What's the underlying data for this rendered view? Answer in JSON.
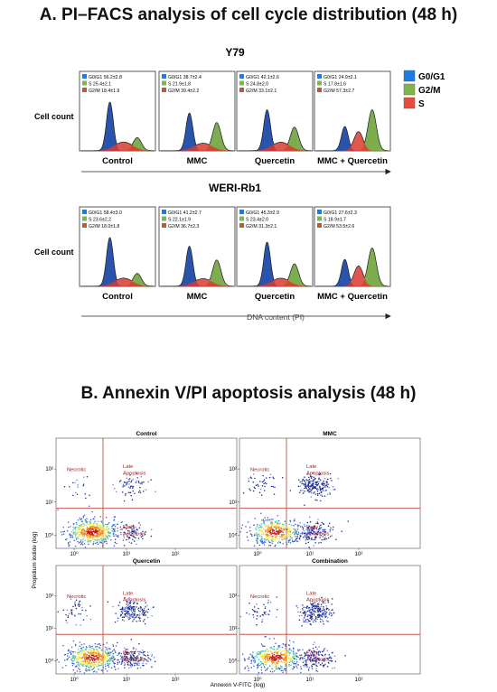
{
  "panel_a": {
    "title": "A. PI–FACS analysis of cell cycle distribution (48 h)",
    "y_label": "Cell count",
    "x_axis_label": "DNA content (PI)",
    "legend": [
      {
        "label": "G0/G1",
        "color": "#1e7be0"
      },
      {
        "label": "G2/M",
        "color": "#7fb54a"
      },
      {
        "label": "S",
        "color": "#e84c3d"
      }
    ],
    "rows": [
      {
        "name": "Y79",
        "panels": [
          {
            "label": "Control",
            "g0g1": "G0/G1 56.2±2.8",
            "s": "S 25.4±2.1",
            "g2m": "G2/M 18.4±1.9"
          },
          {
            "label": "MMC",
            "g0g1": "G0/G1 38.7±2.4",
            "s": "S 21.9±1.8",
            "g2m": "G2/M 39.4±2.2"
          },
          {
            "label": "Quercetin",
            "g0g1": "G0/G1 42.1±2.6",
            "s": "S 24.8±2.0",
            "g2m": "G2/M 33.1±2.1"
          },
          {
            "label": "MMC + Quercetin",
            "g0g1": "G0/G1 24.9±2.1",
            "s": "S 17.8±1.6",
            "g2m": "G2/M 57.3±2.7"
          }
        ]
      },
      {
        "name": "WERI-Rb1",
        "panels": [
          {
            "label": "Control",
            "g0g1": "G0/G1 58.4±3.0",
            "s": "S 23.6±2.2",
            "g2m": "G2/M 18.0±1.8"
          },
          {
            "label": "MMC",
            "g0g1": "G0/G1 41.2±2.7",
            "s": "S 22.1±1.9",
            "g2m": "G2/M 36.7±2.3"
          },
          {
            "label": "Quercetin",
            "g0g1": "G0/G1 45.3±2.9",
            "s": "S 23.4±2.0",
            "g2m": "G2/M 31.3±2.1"
          },
          {
            "label": "MMC + Quercetin",
            "g0g1": "G0/G1 27.6±2.3",
            "s": "S 18.9±1.7",
            "g2m": "G2/M 53.5±2.6"
          }
        ]
      }
    ]
  },
  "panel_b": {
    "title": "B. Annexin V/PI apoptosis analysis (48 h)",
    "x_label": "Annexin V-FITC (log)",
    "y_label": "Propidium iodide (log)",
    "panels": [
      {
        "title": "Control"
      },
      {
        "title": "MMC"
      },
      {
        "title": "Quercetin"
      },
      {
        "title": "Combination"
      }
    ],
    "quadrant_labels": {
      "necrotic": "Necrotic",
      "late": "Late\nApoptosis",
      "early": "Early\nApoptosis"
    },
    "y_ticks": [
      "10⁰",
      "10¹",
      "10²"
    ],
    "x_ticks": [
      "10⁰",
      "10¹",
      "10²"
    ]
  },
  "chart_data": [
    {
      "type": "area",
      "title": "Y79",
      "xlabel": "DNA content (PI)",
      "ylabel": "Cell count",
      "categories": [
        "Control",
        "MMC",
        "Quercetin",
        "MMC + Quercetin"
      ],
      "series": [
        {
          "name": "G0/G1",
          "values": [
            56.2,
            38.7,
            42.1,
            24.9
          ]
        },
        {
          "name": "S",
          "values": [
            25.4,
            21.9,
            24.8,
            17.8
          ]
        },
        {
          "name": "G2/M",
          "values": [
            18.4,
            39.4,
            33.1,
            57.3
          ]
        }
      ]
    },
    {
      "type": "area",
      "title": "WERI-Rb1",
      "xlabel": "DNA content (PI)",
      "ylabel": "Cell count",
      "categories": [
        "Control",
        "MMC",
        "Quercetin",
        "MMC + Quercetin"
      ],
      "series": [
        {
          "name": "G0/G1",
          "values": [
            58.4,
            41.2,
            45.3,
            27.6
          ]
        },
        {
          "name": "S",
          "values": [
            23.6,
            22.1,
            23.4,
            18.9
          ]
        },
        {
          "name": "G2/M",
          "values": [
            18.0,
            36.7,
            31.3,
            53.5
          ]
        }
      ]
    },
    {
      "type": "scatter",
      "title": "",
      "xlabel": "Annexin V-FITC (log)",
      "ylabel": "Propidium iodide (log)",
      "categories": [
        "Control",
        "MMC",
        "Quercetin",
        "Combination"
      ],
      "x_scale": "log",
      "y_scale": "log",
      "xlim": [
        0.5,
        200
      ],
      "ylim": [
        0.5,
        200
      ],
      "quadrants": [
        "Necrotic",
        "Late Apoptosis",
        "Early Apoptosis"
      ]
    }
  ]
}
